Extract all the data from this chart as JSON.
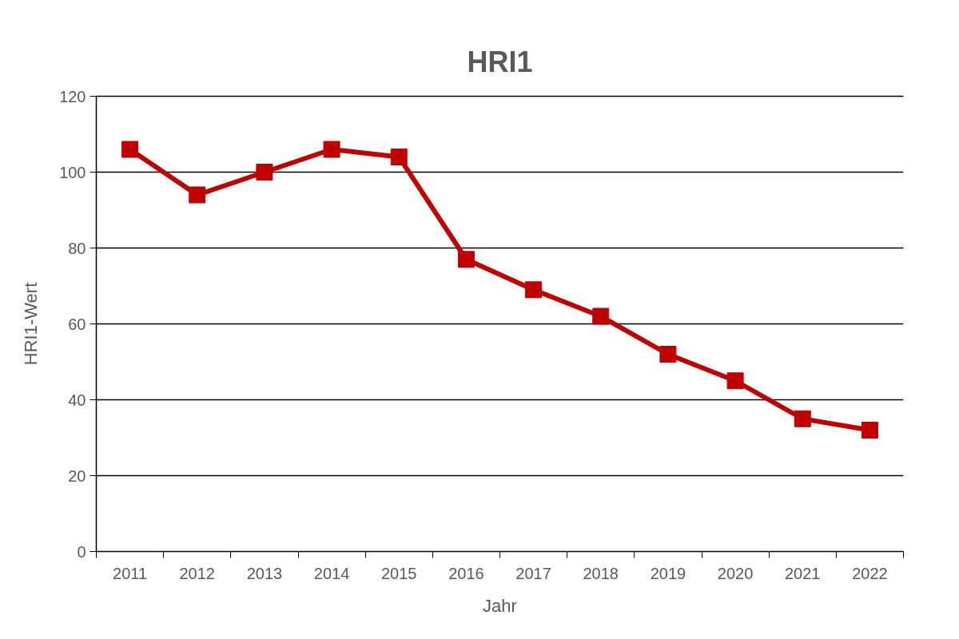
{
  "chart_data": {
    "type": "line",
    "title": "HRI1",
    "xlabel": "Jahr",
    "ylabel": "HRI1-Wert",
    "categories": [
      "2011",
      "2012",
      "2013",
      "2014",
      "2015",
      "2016",
      "2017",
      "2018",
      "2019",
      "2020",
      "2021",
      "2022"
    ],
    "series": [
      {
        "color": "#c00000",
        "values": [
          106,
          94,
          100,
          106,
          104,
          77,
          69,
          62,
          52,
          45,
          35,
          32
        ]
      }
    ],
    "ylim": [
      0,
      120
    ],
    "yticks": [
      0,
      20,
      40,
      60,
      80,
      100,
      120
    ],
    "grid": "y",
    "marker": "square",
    "line_style": "solid"
  }
}
